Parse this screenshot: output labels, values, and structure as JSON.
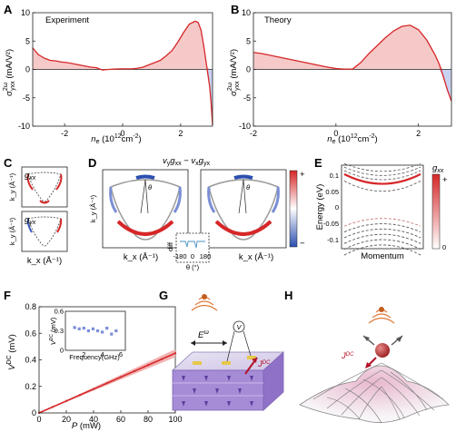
{
  "panels": {
    "A": {
      "label": "A",
      "title": "Experiment",
      "ylabel": "σ^{2ω}_{yxx} (mA/V²)",
      "xlabel": "n_e (10^12 cm^-2)"
    },
    "B": {
      "label": "B",
      "title": "Theory",
      "ylabel": "σ^{2ω}_{yxx} (mA/V²)",
      "xlabel": "n_e (10^12 cm^-2)"
    },
    "C": {
      "label": "C",
      "top_label": "g_xx",
      "bottom_label": "g_yx",
      "ylabel": "k_y (Å⁻¹)",
      "xlabel": "k_x (Å⁻¹)"
    },
    "D": {
      "label": "D",
      "title": "v_y g_xx − v_x g_yx",
      "ylabel": "k_y (Å⁻¹)",
      "xlabel_left": "k_x (Å⁻¹)",
      "xlabel_right": "k_x (Å⁻¹)",
      "angle": "θ",
      "inset_ylabel": "diff",
      "inset_ticks": [
        "-180",
        "0",
        "180"
      ],
      "inset_xlabel": "θ (°)",
      "colorbar_plus": "+",
      "colorbar_minus": "−"
    },
    "E": {
      "label": "E",
      "ylabel": "Energy (eV)",
      "xlabel": "Momentum",
      "yticks": [
        "0.1",
        "0.05",
        "0",
        "-0.05",
        "-0.1"
      ],
      "colorbar_title": "g_xx",
      "colorbar_plus": "+",
      "colorbar_zero": "0"
    },
    "F": {
      "label": "F",
      "ylabel": "V^DC (mV)",
      "xlabel": "P (mW)",
      "inset_ylabel": "V^DC (mV)",
      "inset_xlabel": "Frequency(GHz)"
    },
    "G": {
      "label": "G",
      "field": "E^ω",
      "meter": "V",
      "current": "J^DC"
    },
    "H": {
      "label": "H",
      "current": "J^DC"
    }
  },
  "colors": {
    "red": "#d62728",
    "blue": "#3a5bbf",
    "fill_red": "#f6c9c9",
    "fill_blue": "#c9d2f0",
    "grey": "#555555"
  },
  "chart_data": [
    {
      "panel": "A",
      "type": "area",
      "xlabel": "n_e (10^12 cm^-2)",
      "ylabel": "σ^{2ω}_{yxx} (mA/V²)",
      "xlim": [
        -3.1,
        3.1
      ],
      "ylim": [
        -10,
        10
      ],
      "xticks": [
        -2,
        0,
        2
      ],
      "yticks": [
        -10,
        -5,
        0,
        5,
        10
      ],
      "x": [
        -3.1,
        -2.9,
        -2.7,
        -2.5,
        -2.3,
        -2.1,
        -1.9,
        -1.7,
        -1.5,
        -1.3,
        -1.1,
        -0.9,
        -0.7,
        -0.5,
        -0.3,
        -0.1,
        0.1,
        0.3,
        0.5,
        0.7,
        0.9,
        1.1,
        1.3,
        1.5,
        1.7,
        1.9,
        2.1,
        2.3,
        2.5,
        2.6,
        2.7,
        2.8,
        2.9,
        3.0,
        3.05,
        3.1
      ],
      "y": [
        3.8,
        2.6,
        2.0,
        1.6,
        1.5,
        1.3,
        1.2,
        1.0,
        0.8,
        0.6,
        0.4,
        0.3,
        -0.1,
        0.0,
        0.05,
        0.1,
        0.1,
        0.1,
        0.2,
        0.4,
        0.8,
        1.2,
        1.6,
        2.4,
        3.3,
        4.8,
        6.5,
        8.0,
        8.5,
        8.3,
        7.0,
        4.0,
        0.5,
        -3.0,
        -6.0,
        -9.8
      ]
    },
    {
      "panel": "B",
      "type": "area",
      "xlabel": "n_e (10^12 cm^-2)",
      "ylabel": "σ^{2ω}_{yxx} (mA/V²)",
      "xlim": [
        -2,
        2.8
      ],
      "ylim": [
        -10,
        10
      ],
      "xticks": [
        -2,
        0,
        2
      ],
      "yticks": [
        -10,
        -5,
        0,
        5,
        10
      ],
      "x": [
        -2,
        -1.8,
        -1.6,
        -1.4,
        -1.2,
        -1.0,
        -0.8,
        -0.6,
        -0.4,
        -0.2,
        0,
        0.2,
        0.4,
        0.6,
        0.8,
        1.0,
        1.2,
        1.4,
        1.6,
        1.8,
        2.0,
        2.2,
        2.4,
        2.5,
        2.6,
        2.7,
        2.8
      ],
      "y": [
        3.0,
        2.8,
        2.5,
        2.2,
        1.9,
        1.6,
        1.3,
        1.0,
        0.7,
        0.4,
        0.15,
        0.05,
        0.05,
        1.2,
        2.8,
        4.2,
        5.6,
        6.8,
        7.6,
        7.8,
        7.0,
        5.2,
        2.6,
        1.0,
        -1.2,
        -3.6,
        -5.6
      ]
    },
    {
      "panel": "E",
      "type": "line",
      "ylabel": "Energy (eV)",
      "xlabel": "Momentum",
      "ylim": [
        -0.12,
        0.14
      ],
      "yticks": [
        0.1,
        0.05,
        0,
        -0.05,
        -0.1
      ]
    },
    {
      "panel": "F",
      "type": "scatter",
      "xlabel": "P (mW)",
      "ylabel": "V^DC (mV)",
      "xlim": [
        0,
        100
      ],
      "ylim": [
        0,
        0.8
      ],
      "xticks": [
        0,
        20,
        40,
        60,
        80,
        100
      ],
      "yticks": [
        0,
        0.2,
        0.4,
        0.6,
        0.8
      ],
      "x": [
        0,
        10,
        20,
        30,
        40,
        50,
        60,
        70,
        80,
        90,
        100
      ],
      "y": [
        0.0,
        0.045,
        0.09,
        0.135,
        0.18,
        0.225,
        0.27,
        0.315,
        0.36,
        0.405,
        0.45
      ]
    },
    {
      "panel": "F-inset",
      "type": "scatter",
      "xlabel": "Frequency(GHz)",
      "ylabel": "V^DC (mV)",
      "xlim": [
        0,
        6.5
      ],
      "ylim": [
        0,
        0.6
      ],
      "xticks": [
        2,
        4,
        6
      ],
      "yticks": [
        0,
        0.3,
        0.6
      ],
      "x": [
        1,
        1.5,
        2,
        2.5,
        3,
        3.5,
        4,
        4.5,
        5,
        5.5
      ],
      "y": [
        0.35,
        0.33,
        0.34,
        0.3,
        0.33,
        0.3,
        0.28,
        0.34,
        0.25,
        0.3
      ]
    }
  ]
}
